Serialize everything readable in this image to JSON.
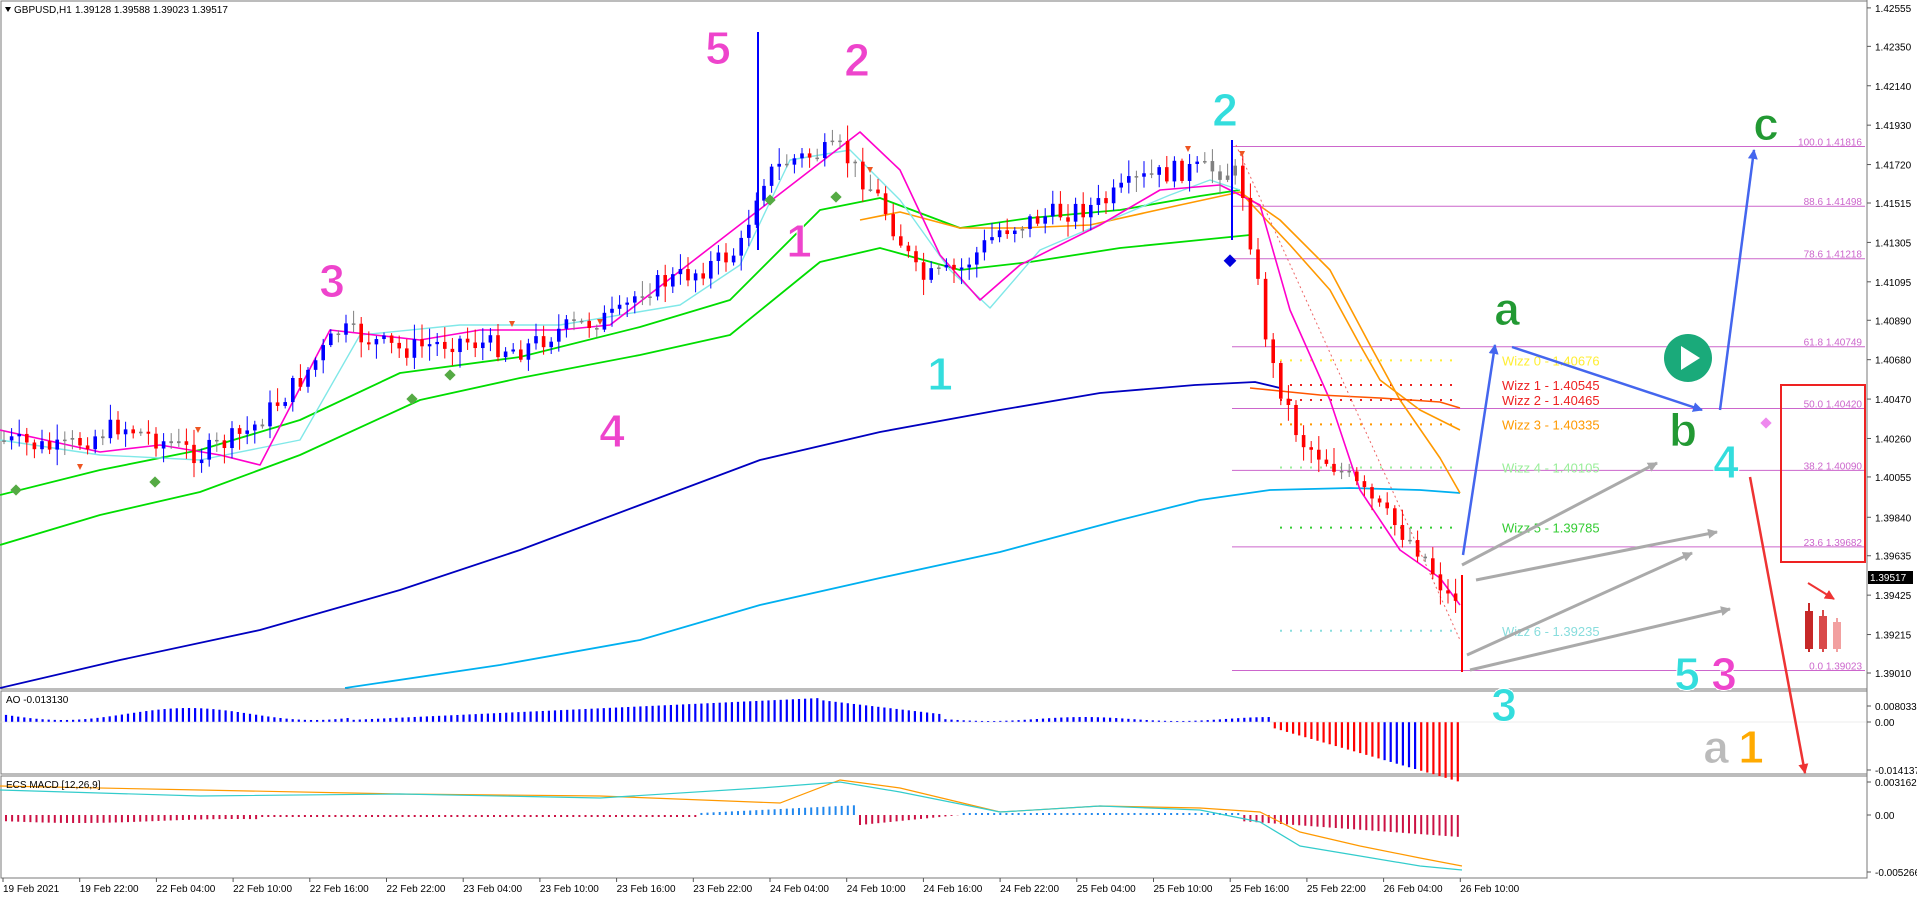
{
  "header": {
    "symbol": "GBPUSD,H1",
    "ohlc": "1.39128 1.39588 1.39023 1.39517"
  },
  "colors": {
    "bull": "#0000ff",
    "bear": "#ff0000",
    "neutral": "#808080",
    "ema_green": "#00dd00",
    "ema_lightblue": "#80e8e8",
    "ema_magenta": "#ff00cc",
    "ema_orange": "#ff9900",
    "ma_blue": "#0000c0",
    "ma_cyan": "#00b0f0",
    "fib": "#cc66cc",
    "wave_pink": "#ee44cc",
    "wave_cyan": "#33dddd",
    "wave_green": "#229933",
    "wave_gray": "#bbbbbb",
    "wave_orange": "#ffaa00",
    "arrow_blue": "#4466ee",
    "arrow_gray": "#aaaaaa",
    "arrow_red": "#ee3333",
    "play_button": "#1aaa7a"
  },
  "main_axis": {
    "ticks": [
      "1.42555",
      "1.42350",
      "1.42140",
      "1.41930",
      "1.41720",
      "1.41515",
      "1.41305",
      "1.41095",
      "1.40890",
      "1.40680",
      "1.40470",
      "1.40260",
      "1.40055",
      "1.39840",
      "1.39635",
      "1.39425",
      "1.39215",
      "1.39010"
    ],
    "current_price": "1.39517"
  },
  "time_axis": [
    "19 Feb 2021",
    "19 Feb 22:00",
    "22 Feb 04:00",
    "22 Feb 10:00",
    "22 Feb 16:00",
    "22 Feb 22:00",
    "23 Feb 04:00",
    "23 Feb 10:00",
    "23 Feb 16:00",
    "23 Feb 22:00",
    "24 Feb 04:00",
    "24 Feb 10:00",
    "24 Feb 16:00",
    "24 Feb 22:00",
    "25 Feb 04:00",
    "25 Feb 10:00",
    "25 Feb 16:00",
    "25 Feb 22:00",
    "26 Feb 04:00",
    "26 Feb 10:00"
  ],
  "ao_panel": {
    "label": "AO -0.013130",
    "ticks": [
      "0.008033",
      "0.00",
      "-0.014137"
    ]
  },
  "macd_panel": {
    "label": "ECS MACD [12,26,9]",
    "ticks": [
      "0.0031625",
      "0.00",
      "-0.005266"
    ]
  },
  "fib_levels": [
    {
      "label": "100.0 1.41816",
      "price": 1.41816
    },
    {
      "label": "88.6 1.41498",
      "price": 1.41498
    },
    {
      "label": "78.6 1.41218",
      "price": 1.41218
    },
    {
      "label": "61.8 1.40749",
      "price": 1.40749
    },
    {
      "label": "50.0 1.40420",
      "price": 1.4042
    },
    {
      "label": "38.2 1.40090",
      "price": 1.4009
    },
    {
      "label": "23.6 1.39682",
      "price": 1.39682
    },
    {
      "label": "0.0 1.39023",
      "price": 1.39023
    }
  ],
  "wizz_levels": [
    {
      "label": "Wizz 0 - 1.40676",
      "price": 1.40676,
      "color": "#ffee33"
    },
    {
      "label": "Wizz 1 - 1.40545",
      "price": 1.40545,
      "color": "#ee2222"
    },
    {
      "label": "Wizz 2 - 1.40465",
      "price": 1.40465,
      "color": "#ee2222"
    },
    {
      "label": "Wizz 3 - 1.40335",
      "price": 1.40335,
      "color": "#ff9900"
    },
    {
      "label": "Wizz 4 - 1.40105",
      "price": 1.40105,
      "color": "#99ee99"
    },
    {
      "label": "Wizz 5 - 1.39785",
      "price": 1.39785,
      "color": "#33cc33"
    },
    {
      "label": "Wizz 6 - 1.39235",
      "price": 1.39235,
      "color": "#88dddd"
    }
  ],
  "wave_labels": [
    {
      "text": "5",
      "color": "#ee44cc"
    },
    {
      "text": "2",
      "color": "#ee44cc"
    },
    {
      "text": "3",
      "color": "#ee44cc"
    },
    {
      "text": "1",
      "color": "#ee44cc"
    },
    {
      "text": "4",
      "color": "#ee44cc"
    },
    {
      "text": "1",
      "color": "#33dddd"
    },
    {
      "text": "2",
      "color": "#33dddd"
    },
    {
      "text": "3",
      "color": "#33dddd"
    },
    {
      "text": "a",
      "color": "#229933"
    },
    {
      "text": "b",
      "color": "#229933"
    },
    {
      "text": "c",
      "color": "#229933"
    },
    {
      "text": "4",
      "color": "#33dddd"
    },
    {
      "text": "5",
      "color": "#33dddd"
    },
    {
      "text": "3",
      "color": "#ee44cc"
    },
    {
      "text": "a",
      "color": "#bbbbbb"
    },
    {
      "text": "1",
      "color": "#ffaa00"
    }
  ],
  "chart_data": {
    "type": "candlestick",
    "title": "GBPUSD,H1",
    "ylim": [
      1.38875,
      1.4258
    ],
    "ohlc_last": {
      "open": 1.39128,
      "high": 1.39588,
      "low": 1.39023,
      "close": 1.39517
    },
    "pivots": [
      {
        "label": "5 (pink)",
        "time": "24 Feb ~01:00",
        "price": 1.4238
      },
      {
        "label": "1 (pink)",
        "time": "24 Feb ~00:00",
        "price": 1.4116
      },
      {
        "label": "2 (pink)",
        "time": "24 Feb ~07:00",
        "price": 1.42
      },
      {
        "label": "1 (cyan)",
        "time": "24 Feb ~15:00",
        "price": 1.4076
      },
      {
        "label": "2 (cyan)",
        "time": "25 Feb ~16:00",
        "price": 1.4187
      },
      {
        "label": "3 (cyan)",
        "time": "26 Feb ~08:00",
        "price": 1.3902
      }
    ],
    "series": [
      {
        "name": "AO",
        "last": -0.01313
      },
      {
        "name": "ECS MACD [12,26,9]"
      }
    ]
  }
}
